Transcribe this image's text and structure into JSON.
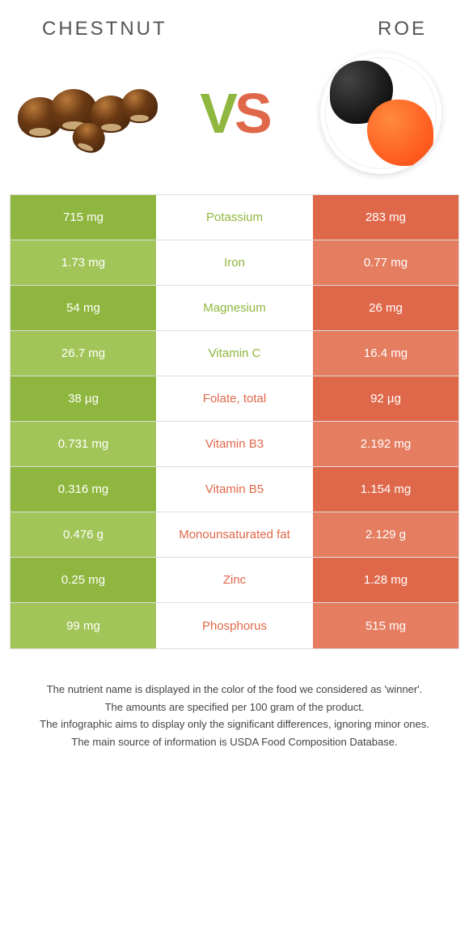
{
  "header": {
    "left_title": "CHESTNUT",
    "right_title": "ROE",
    "vs_v": "V",
    "vs_s": "S"
  },
  "colors": {
    "green": "#8fb63e",
    "green_light": "#a2c559",
    "orange": "#e0684a",
    "orange_light": "#e57d60",
    "text_dark": "#333333",
    "background": "#ffffff"
  },
  "table": {
    "rows": [
      {
        "nutrient": "Potassium",
        "left": "715 mg",
        "right": "283 mg",
        "winner": "left"
      },
      {
        "nutrient": "Iron",
        "left": "1.73 mg",
        "right": "0.77 mg",
        "winner": "left"
      },
      {
        "nutrient": "Magnesium",
        "left": "54 mg",
        "right": "26 mg",
        "winner": "left"
      },
      {
        "nutrient": "Vitamin C",
        "left": "26.7 mg",
        "right": "16.4 mg",
        "winner": "left"
      },
      {
        "nutrient": "Folate, total",
        "left": "38 µg",
        "right": "92 µg",
        "winner": "right"
      },
      {
        "nutrient": "Vitamin B3",
        "left": "0.731 mg",
        "right": "2.192 mg",
        "winner": "right"
      },
      {
        "nutrient": "Vitamin B5",
        "left": "0.316 mg",
        "right": "1.154 mg",
        "winner": "right"
      },
      {
        "nutrient": "Monounsaturated fat",
        "left": "0.476 g",
        "right": "2.129 g",
        "winner": "right"
      },
      {
        "nutrient": "Zinc",
        "left": "0.25 mg",
        "right": "1.28 mg",
        "winner": "right"
      },
      {
        "nutrient": "Phosphorus",
        "left": "99 mg",
        "right": "515 mg",
        "winner": "right"
      }
    ]
  },
  "footer": {
    "line1": "The nutrient name is displayed in the color of the food we considered as 'winner'.",
    "line2": "The amounts are specified per 100 gram of the product.",
    "line3": "The infographic aims to display only the significant differences, ignoring minor ones.",
    "line4": "The main source of information is USDA Food Composition Database."
  }
}
